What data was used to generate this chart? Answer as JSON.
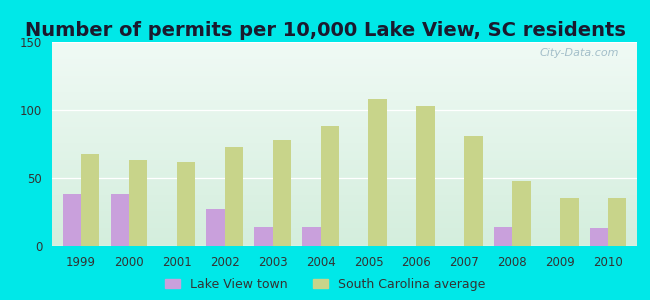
{
  "title": "Number of permits per 10,000 Lake View, SC residents",
  "years": [
    1999,
    2000,
    2001,
    2002,
    2003,
    2004,
    2005,
    2006,
    2007,
    2008,
    2009,
    2010
  ],
  "lake_view": [
    38,
    38,
    0,
    27,
    14,
    14,
    0,
    0,
    0,
    14,
    0,
    13
  ],
  "sc_average": [
    68,
    63,
    62,
    73,
    78,
    88,
    108,
    103,
    81,
    48,
    35,
    35
  ],
  "lake_view_color": "#c9a0dc",
  "sc_average_color": "#c8d48a",
  "background_outer": "#00e8e8",
  "bg_top": "#f0faf5",
  "bg_bottom": "#d4eedd",
  "ylim": [
    0,
    150
  ],
  "yticks": [
    0,
    50,
    100,
    150
  ],
  "title_fontsize": 14,
  "bar_width": 0.38,
  "legend_lake_view": "Lake View town",
  "legend_sc": "South Carolina average",
  "watermark": "City-Data.com"
}
